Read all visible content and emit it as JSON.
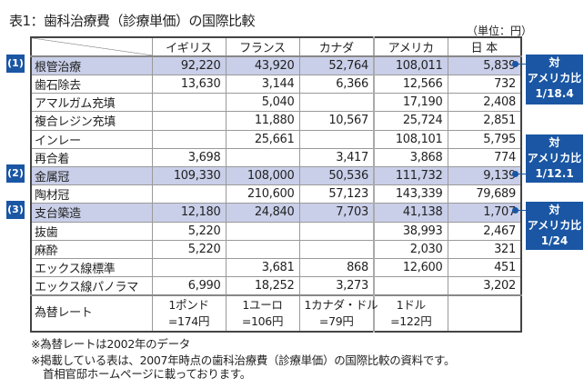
{
  "title": "表1：歯科治療費（診療単価）の国際比較",
  "unit": "（単位：円）",
  "columns": [
    "イギリス",
    "フランス",
    "カナダ",
    "アメリカ",
    "日 本"
  ],
  "rows": [
    {
      "label": "根管治療",
      "values": [
        "92,220",
        "43,920",
        "52,764",
        "108,011",
        "5,839"
      ]
    },
    {
      "label": "歯石除去",
      "values": [
        "13,630",
        "3,144",
        "6,366",
        "12,566",
        "732"
      ]
    },
    {
      "label": "アマルガム充填",
      "values": [
        "",
        "5,040",
        "",
        "17,190",
        "2,408"
      ]
    },
    {
      "label": "複合レジン充填",
      "values": [
        "",
        "11,880",
        "10,567",
        "25,724",
        "2,851"
      ]
    },
    {
      "label": "インレー",
      "values": [
        "",
        "25,661",
        "",
        "108,101",
        "5,795"
      ]
    },
    {
      "label": "再合着",
      "values": [
        "3,698",
        "",
        "3,417",
        "3,868",
        "774"
      ]
    },
    {
      "label": "金属冠",
      "values": [
        "109,330",
        "108,000",
        "50,536",
        "111,732",
        "9,139"
      ]
    },
    {
      "label": "陶材冠",
      "values": [
        "",
        "210,600",
        "57,123",
        "143,339",
        "79,689"
      ]
    },
    {
      "label": "支台築造",
      "values": [
        "12,180",
        "24,840",
        "7,703",
        "41,138",
        "1,707"
      ]
    },
    {
      "label": "抜歯",
      "values": [
        "5,220",
        "",
        "",
        "38,993",
        "2,467"
      ]
    },
    {
      "label": "麻酔",
      "values": [
        "5,220",
        "",
        "",
        "2,030",
        "321"
      ]
    },
    {
      "label": "エックス線標準",
      "values": [
        "",
        "3,681",
        "868",
        "12,600",
        "451"
      ]
    },
    {
      "label": "エックス線パノラマ",
      "values": [
        "6,990",
        "18,252",
        "3,273",
        "",
        "3,202"
      ]
    }
  ],
  "rate": {
    "label": "為替レート",
    "values": [
      [
        "1ポンド",
        "=174円"
      ],
      [
        "1ユーロ",
        "=106円"
      ],
      [
        "1カナダ・ドル",
        "=79円"
      ],
      [
        "1ドル",
        "=122円"
      ],
      [
        "",
        ""
      ]
    ]
  },
  "markers": [
    "(1)",
    "(2)",
    "(3)"
  ],
  "callouts": [
    [
      "対",
      "アメリカ比",
      "1/18.4"
    ],
    [
      "対",
      "アメリカ比",
      "1/12.1"
    ],
    [
      "対",
      "アメリカ比",
      "1/24"
    ]
  ],
  "notes": [
    "※為替レートは2002年のデータ",
    "※掲載している表は、2007年時点の歯科治療費（診療単価）の国際比較の資料です。",
    "首相官邸ホームページに載っております。"
  ],
  "colors": {
    "accent": "#1a56a3",
    "highlight": "#c9cfe9"
  }
}
